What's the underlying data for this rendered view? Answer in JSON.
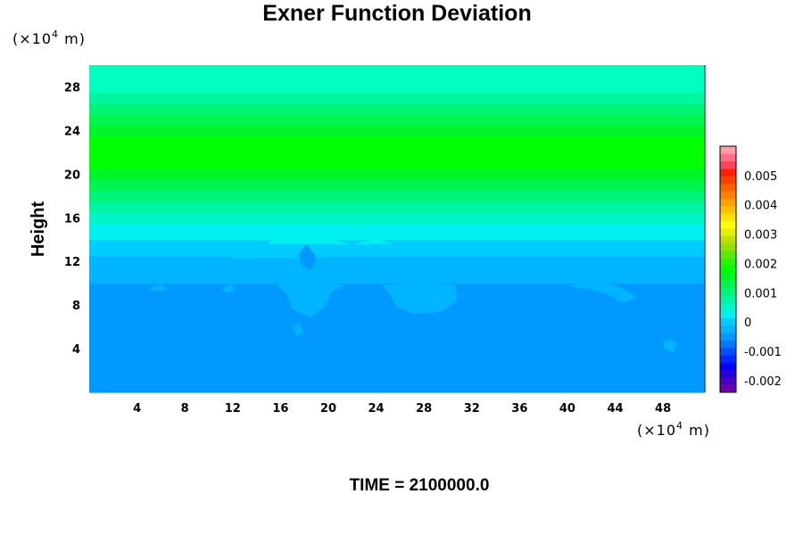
{
  "chart_data": {
    "type": "heatmap",
    "title": "Exner Function Deviation",
    "ylabel": "Height",
    "x_unit": {
      "prefix": "(×10",
      "exp": "4",
      "suffix": " m)"
    },
    "y_unit": {
      "prefix": "(×10",
      "exp": "4",
      "suffix": " m)"
    },
    "xlim": [
      0,
      51.5
    ],
    "ylim": [
      0,
      30
    ],
    "xticks": [
      4,
      8,
      12,
      16,
      20,
      24,
      28,
      32,
      36,
      40,
      44,
      48
    ],
    "yticks": [
      4,
      8,
      12,
      16,
      20,
      24,
      28
    ],
    "layers": [
      {
        "y0": 0,
        "y1": 10,
        "value": -0.0005,
        "color": "#0099ff"
      },
      {
        "y0": 10,
        "y1": 12.5,
        "value": -0.00025,
        "color": "#00b4ff"
      },
      {
        "y0": 12.5,
        "y1": 14,
        "value": 0,
        "color": "#00ccff"
      },
      {
        "y0": 14,
        "y1": 15.5,
        "value": 0.00025,
        "color": "#00f0f0"
      },
      {
        "y0": 15.5,
        "y1": 16.5,
        "value": 0.0005,
        "color": "#00f5c8"
      },
      {
        "y0": 16.5,
        "y1": 17.5,
        "value": 0.00075,
        "color": "#00f5a0"
      },
      {
        "y0": 17.5,
        "y1": 18.5,
        "value": 0.001,
        "color": "#00f578"
      },
      {
        "y0": 18.5,
        "y1": 19.5,
        "value": 0.00125,
        "color": "#00f550"
      },
      {
        "y0": 19.5,
        "y1": 20.5,
        "value": 0.0015,
        "color": "#00f528"
      },
      {
        "y0": 20.5,
        "y1": 23.5,
        "value": 0.00175,
        "color": "#00ff00"
      },
      {
        "y0": 23.5,
        "y1": 24.5,
        "value": 0.0015,
        "color": "#00f528"
      },
      {
        "y0": 24.5,
        "y1": 25.5,
        "value": 0.00125,
        "color": "#00f550"
      },
      {
        "y0": 25.5,
        "y1": 26.5,
        "value": 0.001,
        "color": "#00f578"
      },
      {
        "y0": 26.5,
        "y1": 27.5,
        "value": 0.00075,
        "color": "#00f5a0"
      },
      {
        "y0": 27.5,
        "y1": 30,
        "value": 0.0005,
        "color": "#00ffc0"
      }
    ],
    "colorbar": {
      "ticks": [
        {
          "value": 0.005,
          "label": "0.005"
        },
        {
          "value": 0.004,
          "label": "0.004"
        },
        {
          "value": 0.003,
          "label": "0.003"
        },
        {
          "value": 0.002,
          "label": "0.002"
        },
        {
          "value": 0.001,
          "label": "0.001"
        },
        {
          "value": 0,
          "label": "0"
        },
        {
          "value": -0.001,
          "label": "-0.001"
        },
        {
          "value": -0.002,
          "label": "-0.002"
        }
      ],
      "range": [
        -0.0024,
        0.006
      ],
      "bands": [
        "#6a00a8",
        "#4a00c0",
        "#2800d8",
        "#0000ff",
        "#0028ff",
        "#0050ff",
        "#0078ff",
        "#0099ff",
        "#00b4ff",
        "#00ccff",
        "#00f0f0",
        "#00f5c8",
        "#00f5a0",
        "#00f578",
        "#00f550",
        "#00f528",
        "#00ff00",
        "#30f000",
        "#60e800",
        "#90e000",
        "#c0e000",
        "#e6f000",
        "#ffff00",
        "#ffe000",
        "#ffc000",
        "#ffa000",
        "#ff8000",
        "#ff6000",
        "#ff4000",
        "#ff2000",
        "#ff4060",
        "#ff6e80",
        "#ffa0a8"
      ]
    },
    "time_label": "TIME = 2100000.0"
  }
}
